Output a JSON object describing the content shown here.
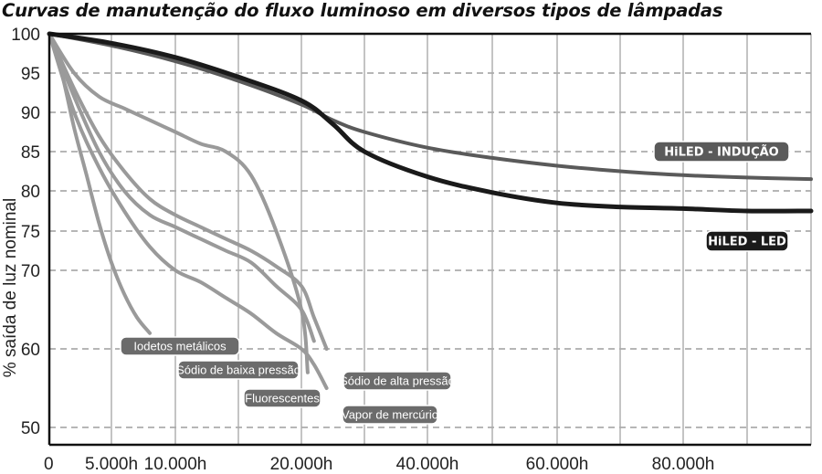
{
  "chart_data": {
    "type": "line",
    "title": "Curvas de manutenção do fluxo luminoso em diversos tipos de lâmpadas",
    "ylabel": "% saída de luz nominal",
    "xlabel": "",
    "x_ticks": [
      {
        "value": 0,
        "label": "0"
      },
      {
        "value": 5000,
        "label": "5.000h"
      },
      {
        "value": 10000,
        "label": "10.000h"
      },
      {
        "value": 20000,
        "label": "20.000h"
      },
      {
        "value": 40000,
        "label": "40.000h"
      },
      {
        "value": 60000,
        "label": "60.000h"
      },
      {
        "value": 80000,
        "label": "80.000h"
      }
    ],
    "y_ticks": [
      100,
      95,
      90,
      85,
      80,
      75,
      70,
      60,
      50
    ],
    "ylim": [
      46,
      100
    ],
    "xlim": [
      0,
      100000
    ],
    "grid": "dashed horizontal and solid vertical lines",
    "series": [
      {
        "name": "HiLED - INDUÇÃO",
        "color": "#5a5a5a",
        "width": 4,
        "label_style": "bold",
        "points": [
          [
            0,
            100
          ],
          [
            5000,
            98.5
          ],
          [
            10000,
            96.5
          ],
          [
            15000,
            94
          ],
          [
            20000,
            91
          ],
          [
            25000,
            89
          ],
          [
            30000,
            87.5
          ],
          [
            40000,
            85.5
          ],
          [
            50000,
            84.2
          ],
          [
            60000,
            83.2
          ],
          [
            70000,
            82.5
          ],
          [
            80000,
            82
          ],
          [
            90000,
            81.7
          ],
          [
            100000,
            81.5
          ]
        ]
      },
      {
        "name": "HiLED - LED",
        "color": "#1a1a1a",
        "width": 5,
        "label_style": "bold",
        "points": [
          [
            0,
            100
          ],
          [
            5000,
            98.8
          ],
          [
            10000,
            97
          ],
          [
            15000,
            94.5
          ],
          [
            20000,
            91.5
          ],
          [
            25000,
            88.5
          ],
          [
            30000,
            85
          ],
          [
            40000,
            81.8
          ],
          [
            50000,
            79.8
          ],
          [
            60000,
            78.5
          ],
          [
            70000,
            78
          ],
          [
            80000,
            77.8
          ],
          [
            90000,
            77.5
          ],
          [
            100000,
            77.5
          ]
        ]
      },
      {
        "name": "Iodetos metálicos",
        "color": "#9a9a9a",
        "width": 4,
        "points": [
          [
            0,
            100
          ],
          [
            1000,
            95
          ],
          [
            2000,
            88
          ],
          [
            3000,
            82
          ],
          [
            4000,
            76
          ],
          [
            5000,
            71
          ],
          [
            6000,
            67
          ],
          [
            7000,
            64
          ],
          [
            8000,
            62
          ]
        ]
      },
      {
        "name": "Sódio de baixa pressão",
        "color": "#9a9a9a",
        "width": 4,
        "points": [
          [
            0,
            100
          ],
          [
            2000,
            92
          ],
          [
            4000,
            85
          ],
          [
            6000,
            80
          ],
          [
            8000,
            77
          ],
          [
            10000,
            75.5
          ],
          [
            12000,
            74
          ],
          [
            14000,
            72.5
          ],
          [
            16000,
            71
          ],
          [
            18000,
            68
          ],
          [
            20000,
            65
          ],
          [
            22000,
            61
          ]
        ]
      },
      {
        "name": "Fluorescentes",
        "color": "#9a9a9a",
        "width": 4,
        "points": [
          [
            0,
            100
          ],
          [
            2000,
            95
          ],
          [
            4000,
            92
          ],
          [
            6000,
            90.5
          ],
          [
            8000,
            89
          ],
          [
            10000,
            87.5
          ],
          [
            12000,
            86
          ],
          [
            14000,
            85
          ],
          [
            16000,
            82
          ],
          [
            18000,
            75
          ],
          [
            20000,
            65
          ],
          [
            21000,
            57
          ]
        ]
      },
      {
        "name": "Sódio de alta pressão",
        "color": "#9a9a9a",
        "width": 4,
        "points": [
          [
            0,
            100
          ],
          [
            2000,
            93
          ],
          [
            4000,
            87
          ],
          [
            6000,
            82.5
          ],
          [
            8000,
            79
          ],
          [
            10000,
            77
          ],
          [
            12000,
            75.5
          ],
          [
            14000,
            74
          ],
          [
            16000,
            72.5
          ],
          [
            18000,
            70.5
          ],
          [
            20000,
            68
          ],
          [
            22000,
            64
          ],
          [
            24000,
            60
          ]
        ]
      },
      {
        "name": "Vapor de mercúrio",
        "color": "#9a9a9a",
        "width": 4,
        "points": [
          [
            0,
            100
          ],
          [
            2000,
            90
          ],
          [
            4000,
            83
          ],
          [
            6000,
            77.5
          ],
          [
            8000,
            73
          ],
          [
            10000,
            70
          ],
          [
            12000,
            68.5
          ],
          [
            14000,
            66.5
          ],
          [
            16000,
            64.5
          ],
          [
            18000,
            62
          ],
          [
            20000,
            60
          ],
          [
            22000,
            58
          ],
          [
            24000,
            55
          ]
        ]
      }
    ],
    "annotations": [
      {
        "text": "HiLED - INDUÇÃO",
        "for": "HiLED - INDUÇÃO"
      },
      {
        "text": "HiLED - LED",
        "for": "HiLED - LED"
      },
      {
        "text": "Iodetos metálicos",
        "for": "Iodetos metálicos"
      },
      {
        "text": "Sódio de baixa pressão",
        "for": "Sódio de baixa pressão"
      },
      {
        "text": "Fluorescentes",
        "for": "Fluorescentes"
      },
      {
        "text": "Sódio de alta pressão",
        "for": "Sódio de alta pressão"
      },
      {
        "text": "Vapor de mercúrio",
        "for": "Vapor de mercúrio"
      }
    ]
  }
}
